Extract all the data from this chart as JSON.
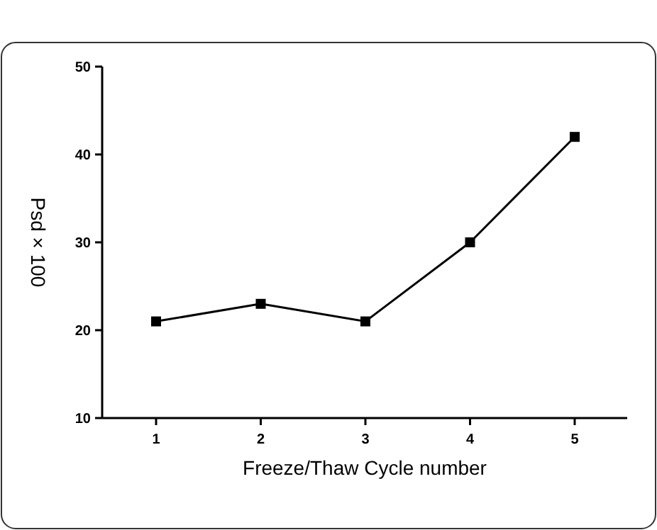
{
  "chart_data": {
    "type": "line",
    "xlabel": "Freeze/Thaw Cycle number",
    "ylabel": "Psd × 100",
    "categories": [
      "1",
      "2",
      "3",
      "4",
      "5"
    ],
    "series": [
      {
        "color": "#000000",
        "values": [
          21,
          23,
          21,
          30,
          42
        ]
      }
    ],
    "ylim": [
      10,
      50
    ],
    "yticks": [
      10,
      20,
      30,
      40,
      50
    ],
    "marker": "square",
    "line_style": "solid"
  }
}
